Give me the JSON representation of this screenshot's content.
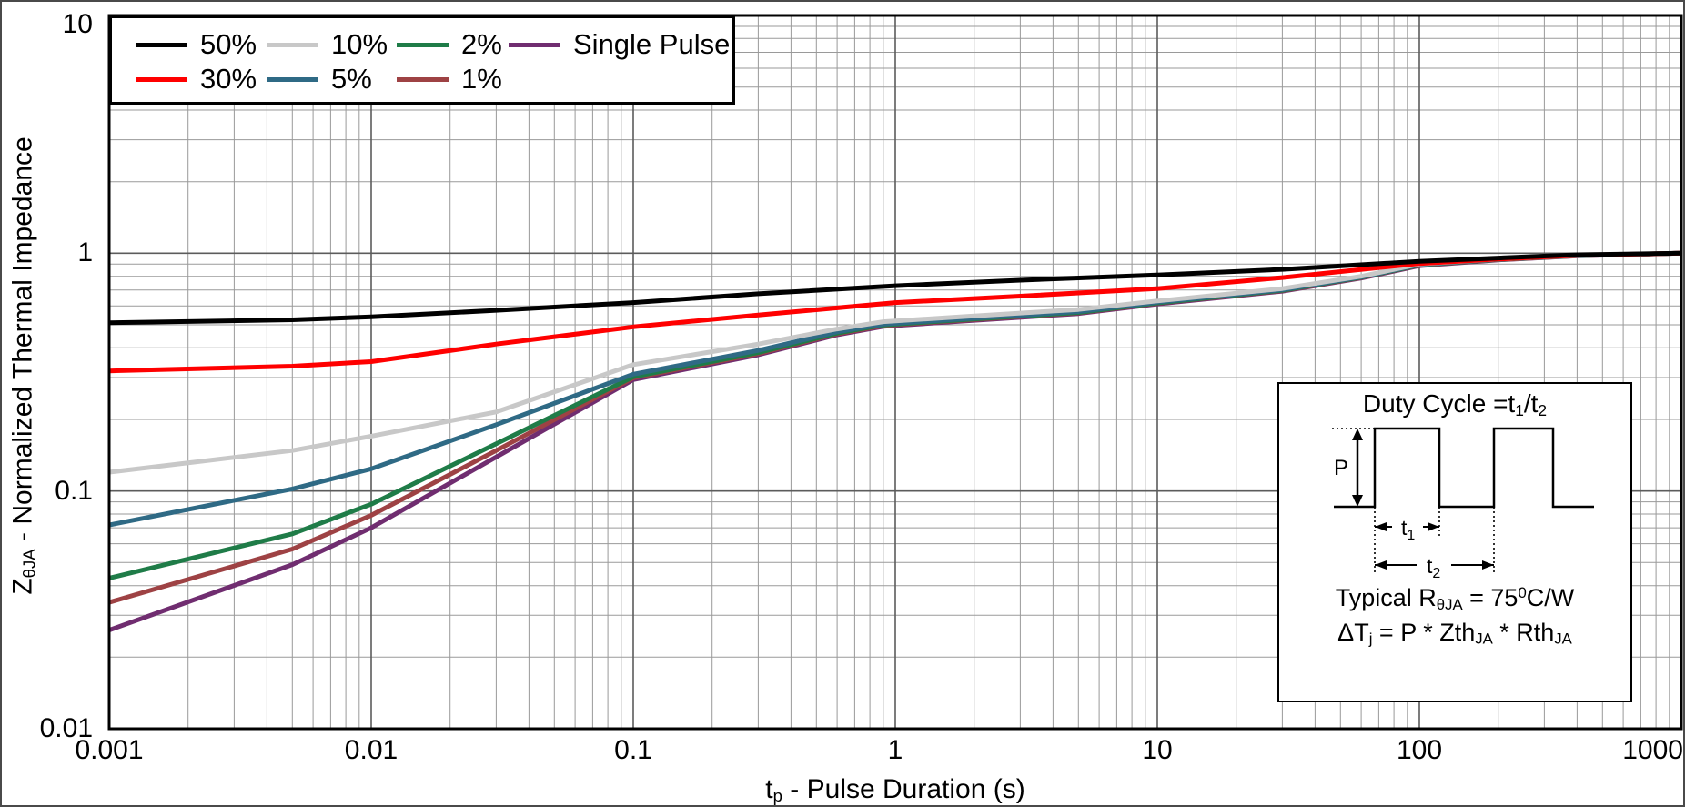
{
  "chart_data": {
    "type": "line",
    "x_scale": "log",
    "y_scale": "log",
    "xlim": [
      0.001,
      1000
    ],
    "ylim": [
      0.01,
      10
    ],
    "grid": "major+minor log decades, both axes",
    "legend_position": "top-left",
    "xlabel": {
      "segments": [
        {
          "t": "t"
        },
        {
          "t": "p",
          "s": "sub"
        },
        {
          "t": " - Pulse Duration (s)"
        }
      ]
    },
    "ylabel": {
      "segments": [
        {
          "t": "Z"
        },
        {
          "t": "θJA",
          "s": "sub"
        },
        {
          "t": " - Normalized Thermal Impedance"
        }
      ]
    },
    "x_ticks": [
      {
        "label": "0.001",
        "v": 0.001
      },
      {
        "label": "0.01",
        "v": 0.01
      },
      {
        "label": "0.1",
        "v": 0.1
      },
      {
        "label": "1",
        "v": 1
      },
      {
        "label": "10",
        "v": 10
      },
      {
        "label": "100",
        "v": 100
      },
      {
        "label": "1000",
        "v": 1000
      }
    ],
    "y_ticks": [
      {
        "label": "10",
        "v": 10
      },
      {
        "label": "1",
        "v": 1
      },
      {
        "label": "0.1",
        "v": 0.1
      },
      {
        "label": "0.01",
        "v": 0.01
      }
    ],
    "series": [
      {
        "name": "50%",
        "color": "#000000",
        "points": [
          [
            0.001,
            0.51
          ],
          [
            0.005,
            0.525
          ],
          [
            0.01,
            0.54
          ],
          [
            0.03,
            0.575
          ],
          [
            0.1,
            0.62
          ],
          [
            0.3,
            0.675
          ],
          [
            1,
            0.73
          ],
          [
            3,
            0.77
          ],
          [
            10,
            0.81
          ],
          [
            30,
            0.855
          ],
          [
            100,
            0.925
          ],
          [
            200,
            0.955
          ],
          [
            400,
            0.985
          ],
          [
            1000,
            1.0
          ]
        ]
      },
      {
        "name": "30%",
        "color": "#ff0000",
        "points": [
          [
            0.001,
            0.32
          ],
          [
            0.005,
            0.335
          ],
          [
            0.01,
            0.35
          ],
          [
            0.03,
            0.415
          ],
          [
            0.1,
            0.49
          ],
          [
            0.3,
            0.55
          ],
          [
            1,
            0.62
          ],
          [
            3,
            0.66
          ],
          [
            10,
            0.71
          ],
          [
            30,
            0.79
          ],
          [
            100,
            0.905
          ],
          [
            200,
            0.945
          ],
          [
            400,
            0.98
          ],
          [
            1000,
            1.0
          ]
        ]
      },
      {
        "name": "10%",
        "color": "#c8c8c8",
        "points": [
          [
            0.001,
            0.12
          ],
          [
            0.005,
            0.148
          ],
          [
            0.01,
            0.17
          ],
          [
            0.03,
            0.215
          ],
          [
            0.1,
            0.34
          ],
          [
            0.3,
            0.415
          ],
          [
            0.6,
            0.48
          ],
          [
            0.9,
            0.515
          ],
          [
            2,
            0.545
          ],
          [
            5,
            0.58
          ],
          [
            10,
            0.63
          ],
          [
            30,
            0.71
          ],
          [
            60,
            0.8
          ],
          [
            100,
            0.9
          ],
          [
            200,
            0.945
          ],
          [
            400,
            0.98
          ],
          [
            1000,
            1.0
          ]
        ]
      },
      {
        "name": "5%",
        "color": "#2f6a85",
        "points": [
          [
            0.001,
            0.072
          ],
          [
            0.005,
            0.102
          ],
          [
            0.01,
            0.124
          ],
          [
            0.03,
            0.19
          ],
          [
            0.1,
            0.31
          ],
          [
            0.3,
            0.39
          ],
          [
            0.6,
            0.467
          ],
          [
            0.9,
            0.503
          ],
          [
            2,
            0.533
          ],
          [
            5,
            0.568
          ],
          [
            10,
            0.622
          ],
          [
            30,
            0.702
          ],
          [
            60,
            0.795
          ],
          [
            100,
            0.895
          ],
          [
            200,
            0.943
          ],
          [
            400,
            0.978
          ],
          [
            1000,
            1.0
          ]
        ]
      },
      {
        "name": "2%",
        "color": "#1f7c48",
        "points": [
          [
            0.001,
            0.043
          ],
          [
            0.005,
            0.066
          ],
          [
            0.01,
            0.088
          ],
          [
            0.03,
            0.158
          ],
          [
            0.1,
            0.302
          ],
          [
            0.3,
            0.382
          ],
          [
            0.6,
            0.461
          ],
          [
            0.9,
            0.499
          ],
          [
            2,
            0.529
          ],
          [
            5,
            0.563
          ],
          [
            10,
            0.618
          ],
          [
            30,
            0.698
          ],
          [
            60,
            0.792
          ],
          [
            100,
            0.892
          ],
          [
            200,
            0.941
          ],
          [
            400,
            0.977
          ],
          [
            1000,
            1.0
          ]
        ]
      },
      {
        "name": "1%",
        "color": "#9e4244",
        "points": [
          [
            0.001,
            0.034
          ],
          [
            0.005,
            0.057
          ],
          [
            0.01,
            0.079
          ],
          [
            0.03,
            0.148
          ],
          [
            0.1,
            0.299
          ],
          [
            0.3,
            0.378
          ],
          [
            0.6,
            0.458
          ],
          [
            0.9,
            0.496
          ],
          [
            2,
            0.526
          ],
          [
            5,
            0.561
          ],
          [
            10,
            0.616
          ],
          [
            30,
            0.696
          ],
          [
            60,
            0.79
          ],
          [
            100,
            0.89
          ],
          [
            200,
            0.94
          ],
          [
            400,
            0.976
          ],
          [
            1000,
            1.0
          ]
        ]
      },
      {
        "name": "Single Pulse",
        "color": "#702d70",
        "points": [
          [
            0.001,
            0.026
          ],
          [
            0.005,
            0.049
          ],
          [
            0.01,
            0.07
          ],
          [
            0.03,
            0.139
          ],
          [
            0.1,
            0.294
          ],
          [
            0.3,
            0.374
          ],
          [
            0.6,
            0.454
          ],
          [
            0.9,
            0.492
          ],
          [
            2,
            0.522
          ],
          [
            5,
            0.557
          ],
          [
            10,
            0.612
          ],
          [
            30,
            0.692
          ],
          [
            60,
            0.786
          ],
          [
            100,
            0.886
          ],
          [
            200,
            0.937
          ],
          [
            400,
            0.974
          ],
          [
            1000,
            1.0
          ]
        ]
      }
    ]
  },
  "legend": {
    "items": [
      {
        "label": "50%",
        "color": "#000000",
        "row": 1,
        "col": 1
      },
      {
        "label": "30%",
        "color": "#ff0000",
        "row": 2,
        "col": 1
      },
      {
        "label": "10%",
        "color": "#c8c8c8",
        "row": 1,
        "col": 2
      },
      {
        "label": "5%",
        "color": "#2f6a85",
        "row": 2,
        "col": 2
      },
      {
        "label": "2%",
        "color": "#1f7c48",
        "row": 1,
        "col": 3
      },
      {
        "label": "1%",
        "color": "#9e4244",
        "row": 2,
        "col": 3
      },
      {
        "label": "Single Pulse",
        "color": "#702d70",
        "row": 1,
        "col": 4
      }
    ]
  },
  "inset": {
    "title": {
      "segments": [
        {
          "t": "Duty Cycle =t"
        },
        {
          "t": "1",
          "s": "sub"
        },
        {
          "t": "/t"
        },
        {
          "t": "2",
          "s": "sub"
        }
      ]
    },
    "wave": {
      "p_label": "P",
      "t_pre": "t",
      "t1_sub": "1",
      "t2_sub": "2"
    },
    "line1": {
      "segments": [
        {
          "t": "Typical R"
        },
        {
          "t": "θJA",
          "s": "sub"
        },
        {
          "t": " = 75"
        },
        {
          "t": "0",
          "s": "sup"
        },
        {
          "t": "C/W"
        }
      ]
    },
    "line2": {
      "segments": [
        {
          "t": "ΔT"
        },
        {
          "t": "j",
          "s": "sub"
        },
        {
          "t": " = P * Zth"
        },
        {
          "t": "JA",
          "s": "sub"
        },
        {
          "t": " * Rth"
        },
        {
          "t": "JA",
          "s": "sub"
        }
      ]
    }
  }
}
